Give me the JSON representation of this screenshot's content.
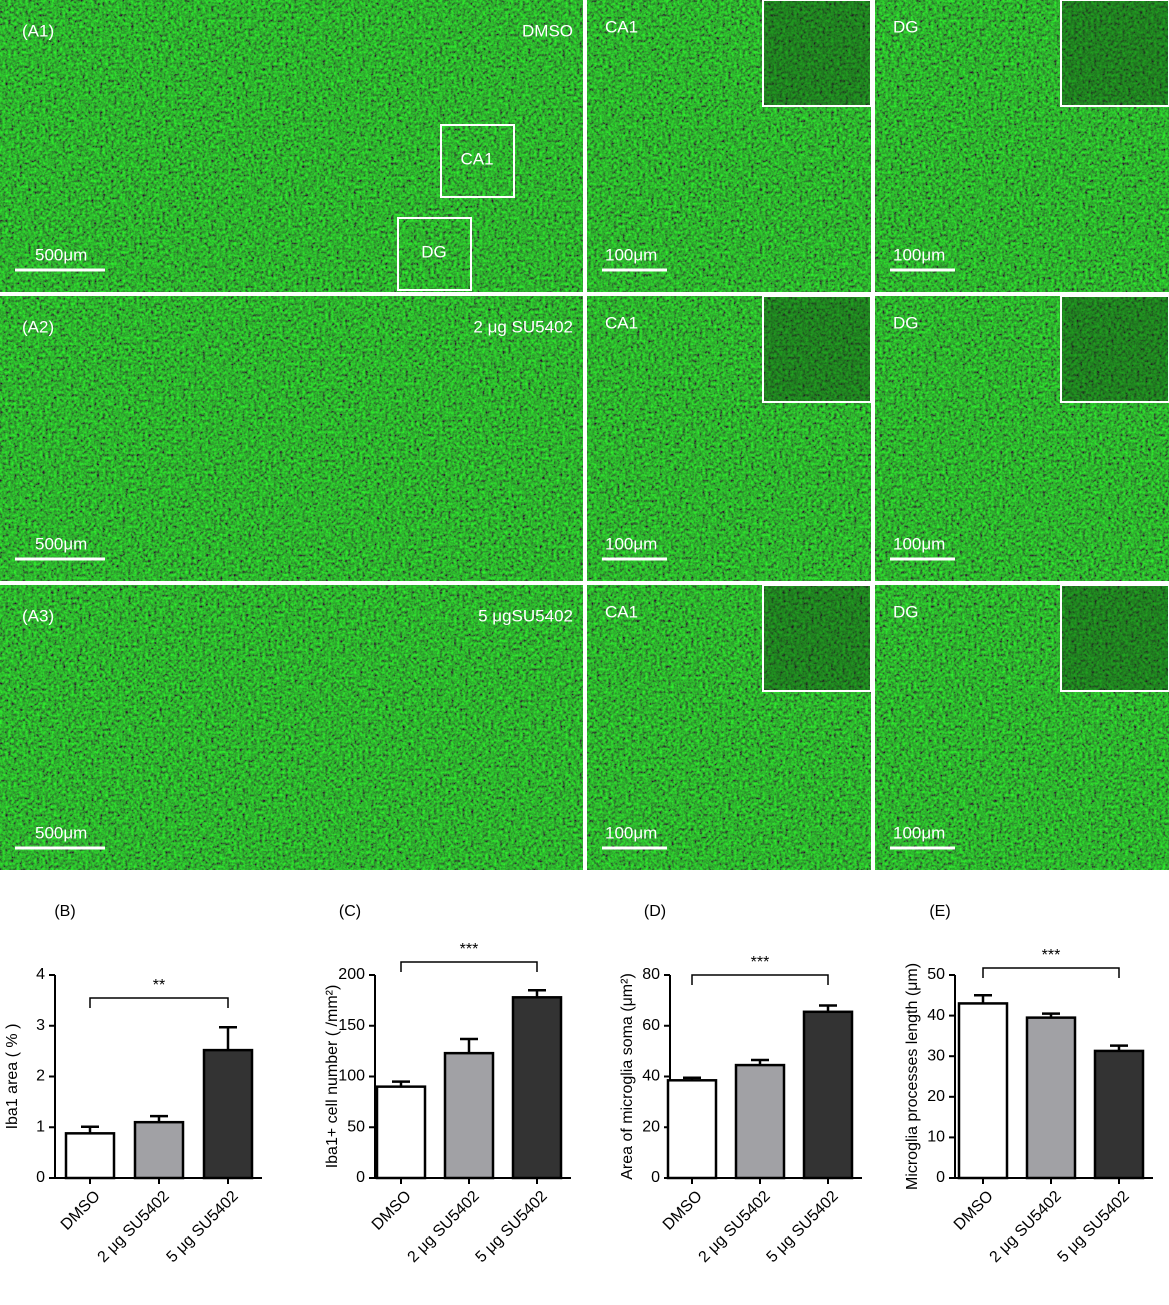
{
  "image_rows": [
    {
      "label": "(A1)",
      "condition": "DMSO",
      "scale_bar": "500μm",
      "regions": [
        "CA1",
        "DG"
      ],
      "zoom_panels": [
        {
          "region": "CA1",
          "scale_bar": "100μm"
        },
        {
          "region": "DG",
          "scale_bar": "100μm"
        }
      ]
    },
    {
      "label": "(A2)",
      "condition": "2 μg SU5402",
      "scale_bar": "500μm",
      "zoom_panels": [
        {
          "region": "CA1",
          "scale_bar": "100μm"
        },
        {
          "region": "DG",
          "scale_bar": "100μm"
        }
      ]
    },
    {
      "label": "(A3)",
      "condition": "5 μgSU5402",
      "scale_bar": "500μm",
      "zoom_panels": [
        {
          "region": "CA1",
          "scale_bar": "100μm"
        },
        {
          "region": "DG",
          "scale_bar": "100μm"
        }
      ]
    }
  ],
  "chart_data": [
    {
      "type": "bar",
      "panel": "(B)",
      "y_label": "Iba1 area ( % )",
      "categories": [
        "DMSO",
        "2 μg SU5402",
        "5 μg SU5402"
      ],
      "values": [
        0.88,
        1.1,
        2.52
      ],
      "errors": [
        0.13,
        0.12,
        0.45
      ],
      "colors": [
        "#ffffff",
        "#a1a1a5",
        "#333333"
      ],
      "ylim": [
        0,
        4
      ],
      "yticks": [
        0,
        1,
        2,
        3,
        4
      ],
      "significance": "**"
    },
    {
      "type": "bar",
      "panel": "(C)",
      "y_label": "Iba1+ cell number ( /mm²)",
      "categories": [
        "DMSO",
        "2 μg SU5402",
        "5 μg SU5402"
      ],
      "values": [
        90,
        123,
        178
      ],
      "errors": [
        5,
        14,
        7
      ],
      "colors": [
        "#ffffff",
        "#a1a1a5",
        "#333333"
      ],
      "ylim": [
        0,
        200
      ],
      "yticks": [
        0,
        50,
        100,
        150,
        200
      ],
      "significance": "***"
    },
    {
      "type": "bar",
      "panel": "(D)",
      "y_label": "Area of microglia soma (μm²)",
      "categories": [
        "DMSO",
        "2 μg SU5402",
        "5 μg SU5402"
      ],
      "values": [
        38.5,
        44.5,
        65.5
      ],
      "errors": [
        1,
        2,
        2.5
      ],
      "colors": [
        "#ffffff",
        "#a1a1a5",
        "#333333"
      ],
      "ylim": [
        0,
        80
      ],
      "yticks": [
        0,
        20,
        40,
        60,
        80
      ],
      "significance": "***"
    },
    {
      "type": "bar",
      "panel": "(E)",
      "y_label": "Microglia processes length (μm)",
      "categories": [
        "DMSO",
        "2 μg SU5402",
        "5 μg SU5402"
      ],
      "values": [
        43,
        39.5,
        31.3
      ],
      "errors": [
        2,
        1,
        1.3
      ],
      "colors": [
        "#ffffff",
        "#a1a1a5",
        "#333333"
      ],
      "ylim": [
        0,
        50
      ],
      "yticks": [
        0,
        10,
        20,
        30,
        40,
        50
      ],
      "significance": "***"
    }
  ]
}
